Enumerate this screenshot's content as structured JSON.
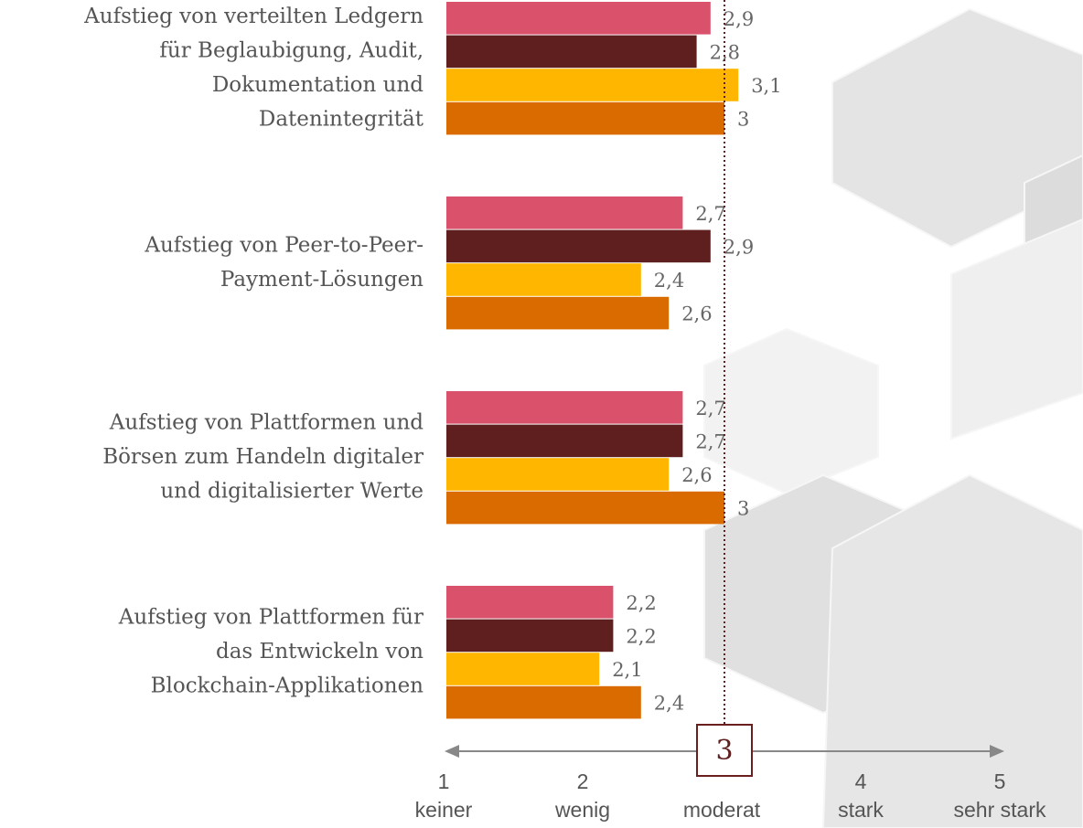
{
  "chart_data": {
    "type": "hbar",
    "categories": [
      [
        "Aufstieg von verteilten Ledgern",
        "für Beglaubigung, Audit,",
        "Dokumentation und",
        "Datenintegrität"
      ],
      [
        "Aufstieg von Peer-to-Peer-",
        "Payment-Lösungen"
      ],
      [
        "Aufstieg von Plattformen und",
        "Börsen zum Handeln digitaler",
        "und digitalisierter Werte"
      ],
      [
        "Aufstieg von Plattformen für",
        "das Entwickeln von",
        "Blockchain-Applikationen"
      ]
    ],
    "series": [
      {
        "color": "#d9516b",
        "values": [
          2.9,
          2.7,
          2.7,
          2.2
        ],
        "value_labels": [
          "2,9",
          "2,7",
          "2,7",
          "2,2"
        ]
      },
      {
        "color": "#5e1f1e",
        "values": [
          2.8,
          2.9,
          2.7,
          2.2
        ],
        "value_labels": [
          "2,8",
          "2,9",
          "2,7",
          "2,2"
        ]
      },
      {
        "color": "#ffb600",
        "values": [
          3.1,
          2.4,
          2.6,
          2.1
        ],
        "value_labels": [
          "3,1",
          "2,4",
          "2,6",
          "2,1"
        ]
      },
      {
        "color": "#d96b00",
        "values": [
          3,
          2.6,
          3,
          2.4
        ],
        "value_labels": [
          "3",
          "2,6",
          "3",
          "2,4"
        ]
      }
    ],
    "xlim": [
      1,
      5
    ],
    "xticks": [
      1,
      2,
      3,
      4,
      5
    ],
    "xtick_descriptions": [
      "keiner",
      "wenig",
      "moderat",
      "stark",
      "sehr stark"
    ],
    "reference_line": 3
  }
}
